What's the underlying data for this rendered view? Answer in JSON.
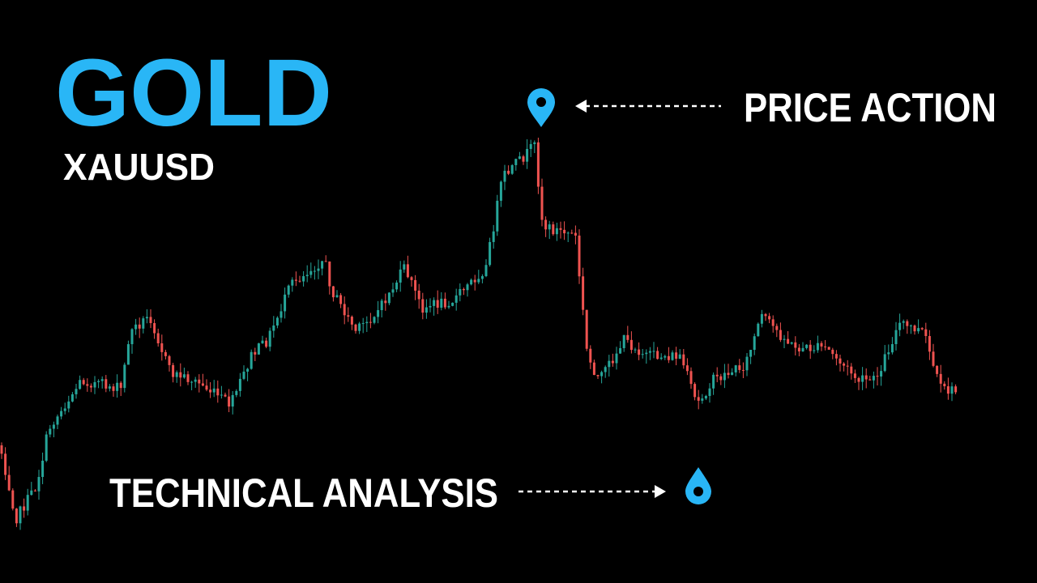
{
  "title": "GOLD",
  "subtitle": "XAUUSD",
  "labels": {
    "top": "PRICE ACTION",
    "bottom": "TECHNICAL ANALYSIS"
  }
}
